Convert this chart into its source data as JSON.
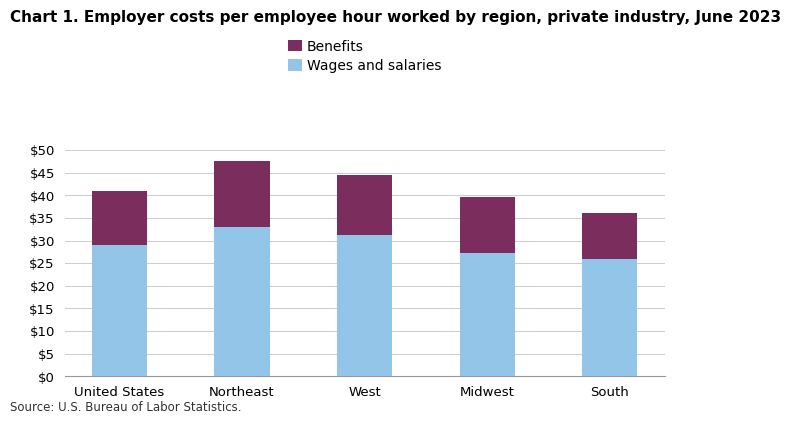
{
  "title": "Chart 1. Employer costs per employee hour worked by region, private industry, June 2023",
  "categories": [
    "United States",
    "Northeast",
    "West",
    "Midwest",
    "South"
  ],
  "wages": [
    29.0,
    33.0,
    31.2,
    27.3,
    26.0
  ],
  "benefits": [
    11.9,
    14.5,
    13.2,
    12.3,
    10.0
  ],
  "wages_color": "#92C5E8",
  "benefits_color": "#7B2D5E",
  "ylim": [
    0,
    50
  ],
  "yticks": [
    0,
    5,
    10,
    15,
    20,
    25,
    30,
    35,
    40,
    45,
    50
  ],
  "legend_labels": [
    "Benefits",
    "Wages and salaries"
  ],
  "source": "Source: U.S. Bureau of Labor Statistics.",
  "background_color": "#ffffff",
  "bar_width": 0.45,
  "title_fontsize": 11,
  "tick_fontsize": 9.5,
  "legend_fontsize": 10,
  "source_fontsize": 8.5
}
